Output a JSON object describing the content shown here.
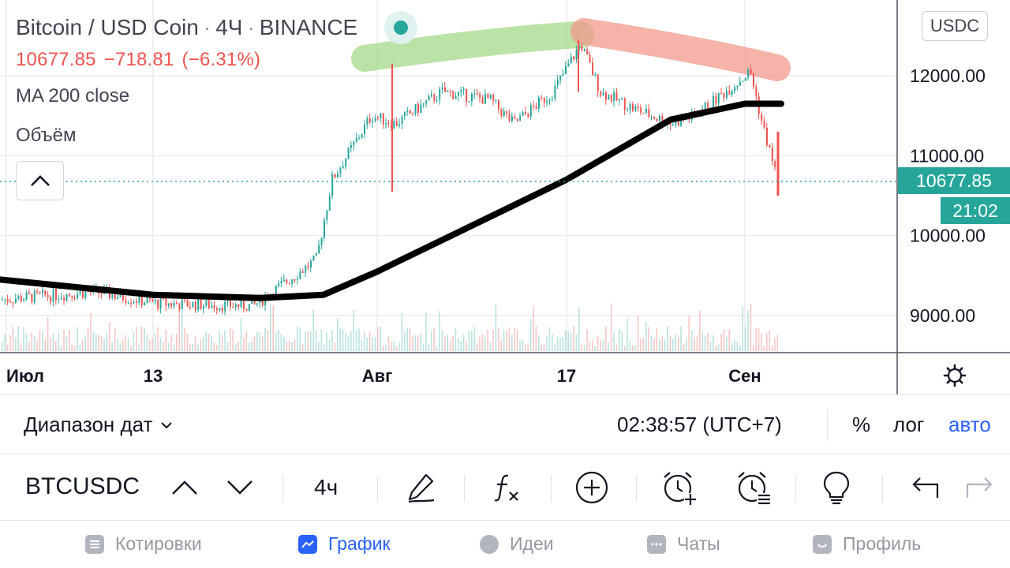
{
  "header": {
    "title_parts": [
      "Bitcoin / USD Coin",
      "4Ч",
      "BINANCE"
    ],
    "separator": "·",
    "last_price": "10677.85",
    "change": "−718.81",
    "change_pct": "(−6.31%)",
    "indicator": "MA 200 close",
    "volume_label": "Объём",
    "currency": "USDC"
  },
  "price_axis": {
    "ticks": [
      "12000.00",
      "11000.00",
      "10000.00",
      "9000.00"
    ],
    "last_price_tag": "10677.85",
    "countdown_tag": "21:02"
  },
  "time_axis": {
    "labels": [
      "Июл",
      "13",
      "Авг",
      "17",
      "Сен"
    ]
  },
  "date_bar": {
    "range_label": "Диапазон дат",
    "clock": "02:38:57 (UTC+7)",
    "percent": "%",
    "log": "лог",
    "auto": "авто"
  },
  "toolbar": {
    "symbol": "BTCUSDC",
    "interval": "4ч"
  },
  "bottom_nav": {
    "items": [
      {
        "label": "Котировки",
        "icon": "list-icon"
      },
      {
        "label": "График",
        "icon": "chart-icon"
      },
      {
        "label": "Идеи",
        "icon": "lightbulb-icon"
      },
      {
        "label": "Чаты",
        "icon": "chat-icon"
      },
      {
        "label": "Профиль",
        "icon": "smiley-icon"
      }
    ],
    "active": "График"
  },
  "colors": {
    "up": "#26a69a",
    "down": "#ef5350",
    "ma": "#000000",
    "accent": "#2962ff",
    "highlight_green": "#a5d98a",
    "highlight_red": "#f29a8c"
  },
  "chart_data": {
    "type": "line",
    "title": "Bitcoin / USD Coin · 4Ч · BINANCE",
    "xlabel": "",
    "ylabel": "",
    "ylim": [
      8500,
      12800
    ],
    "x_tick_labels": [
      "Июл",
      "13",
      "Авг",
      "17",
      "Сен"
    ],
    "y_tick_labels": [
      "12000.00",
      "11000.00",
      "10000.00",
      "9000.00"
    ],
    "series": [
      {
        "name": "MA 200 close",
        "x": [
          "Июл",
          "13",
          "Авг",
          "17",
          "Сен"
        ],
        "y": [
          9450,
          9260,
          9550,
          10700,
          11650
        ]
      }
    ],
    "price_path": {
      "x": [
        "Июл",
        "13",
        "Авг",
        "17",
        "Сен"
      ],
      "y": [
        9200,
        9200,
        11700,
        11900,
        10677.85
      ]
    },
    "last_price": 10677.85
  }
}
